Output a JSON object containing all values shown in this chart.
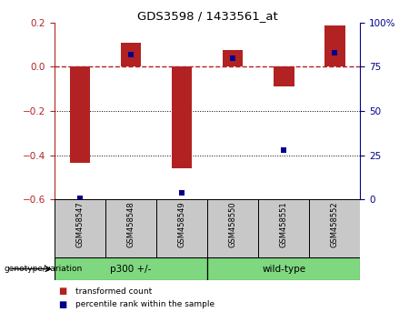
{
  "title": "GDS3598 / 1433561_at",
  "samples": [
    "GSM458547",
    "GSM458548",
    "GSM458549",
    "GSM458550",
    "GSM458551",
    "GSM458552"
  ],
  "transformed_counts": [
    -0.435,
    0.11,
    -0.46,
    0.075,
    -0.09,
    0.185
  ],
  "percentile_ranks": [
    1,
    82,
    4,
    80,
    28,
    83
  ],
  "bar_color": "#B22222",
  "percentile_color": "#00008B",
  "ylim_left": [
    -0.6,
    0.2
  ],
  "ylim_right": [
    0,
    100
  ],
  "yticks_left": [
    -0.6,
    -0.4,
    -0.2,
    0.0,
    0.2
  ],
  "yticks_right": [
    0,
    25,
    50,
    75,
    100
  ],
  "dotted_lines": [
    -0.2,
    -0.4
  ],
  "background_color": "#ffffff",
  "group_bg_color": "#c8c8c8",
  "green_color": "#7FD87F",
  "legend_red_label": "transformed count",
  "legend_blue_label": "percentile rank within the sample",
  "genotype_label": "genotype/variation",
  "groups": [
    {
      "label": "p300 +/-",
      "start": 0,
      "end": 2
    },
    {
      "label": "wild-type",
      "start": 3,
      "end": 5
    }
  ]
}
